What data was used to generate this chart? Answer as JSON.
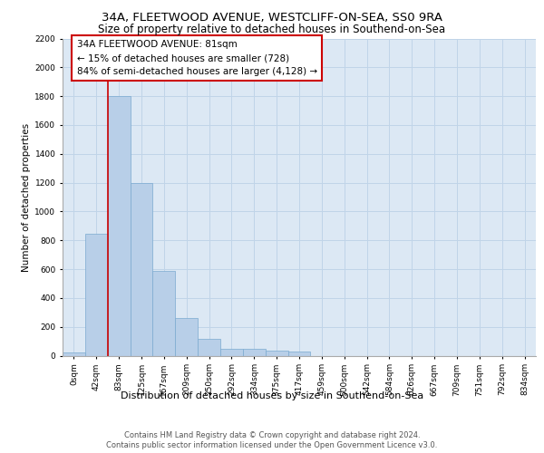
{
  "title": "34A, FLEETWOOD AVENUE, WESTCLIFF-ON-SEA, SS0 9RA",
  "subtitle": "Size of property relative to detached houses in Southend-on-Sea",
  "xlabel": "Distribution of detached houses by size in Southend-on-Sea",
  "ylabel": "Number of detached properties",
  "bar_labels": [
    "0sqm",
    "42sqm",
    "83sqm",
    "125sqm",
    "167sqm",
    "209sqm",
    "250sqm",
    "292sqm",
    "334sqm",
    "375sqm",
    "417sqm",
    "459sqm",
    "500sqm",
    "542sqm",
    "584sqm",
    "626sqm",
    "667sqm",
    "709sqm",
    "751sqm",
    "792sqm",
    "834sqm"
  ],
  "bar_values": [
    25,
    845,
    1800,
    1200,
    585,
    260,
    115,
    50,
    45,
    35,
    30,
    0,
    0,
    0,
    0,
    0,
    0,
    0,
    0,
    0,
    0
  ],
  "bar_color": "#b8cfe8",
  "bar_edge_color": "#7aaad0",
  "grid_color": "#c0d4e8",
  "background_color": "#dce8f4",
  "vline_x": 1.5,
  "vline_color": "#cc0000",
  "annotation_text": "34A FLEETWOOD AVENUE: 81sqm\n← 15% of detached houses are smaller (728)\n84% of semi-detached houses are larger (4,128) →",
  "annotation_box_color": "#ffffff",
  "annotation_box_edge": "#cc0000",
  "ylim": [
    0,
    2200
  ],
  "yticks": [
    0,
    200,
    400,
    600,
    800,
    1000,
    1200,
    1400,
    1600,
    1800,
    2000,
    2200
  ],
  "footer_line1": "Contains HM Land Registry data © Crown copyright and database right 2024.",
  "footer_line2": "Contains public sector information licensed under the Open Government Licence v3.0.",
  "title_fontsize": 9.5,
  "subtitle_fontsize": 8.5,
  "xlabel_fontsize": 8,
  "ylabel_fontsize": 7.5,
  "tick_fontsize": 6.5,
  "footer_fontsize": 6,
  "annotation_fontsize": 7.5
}
